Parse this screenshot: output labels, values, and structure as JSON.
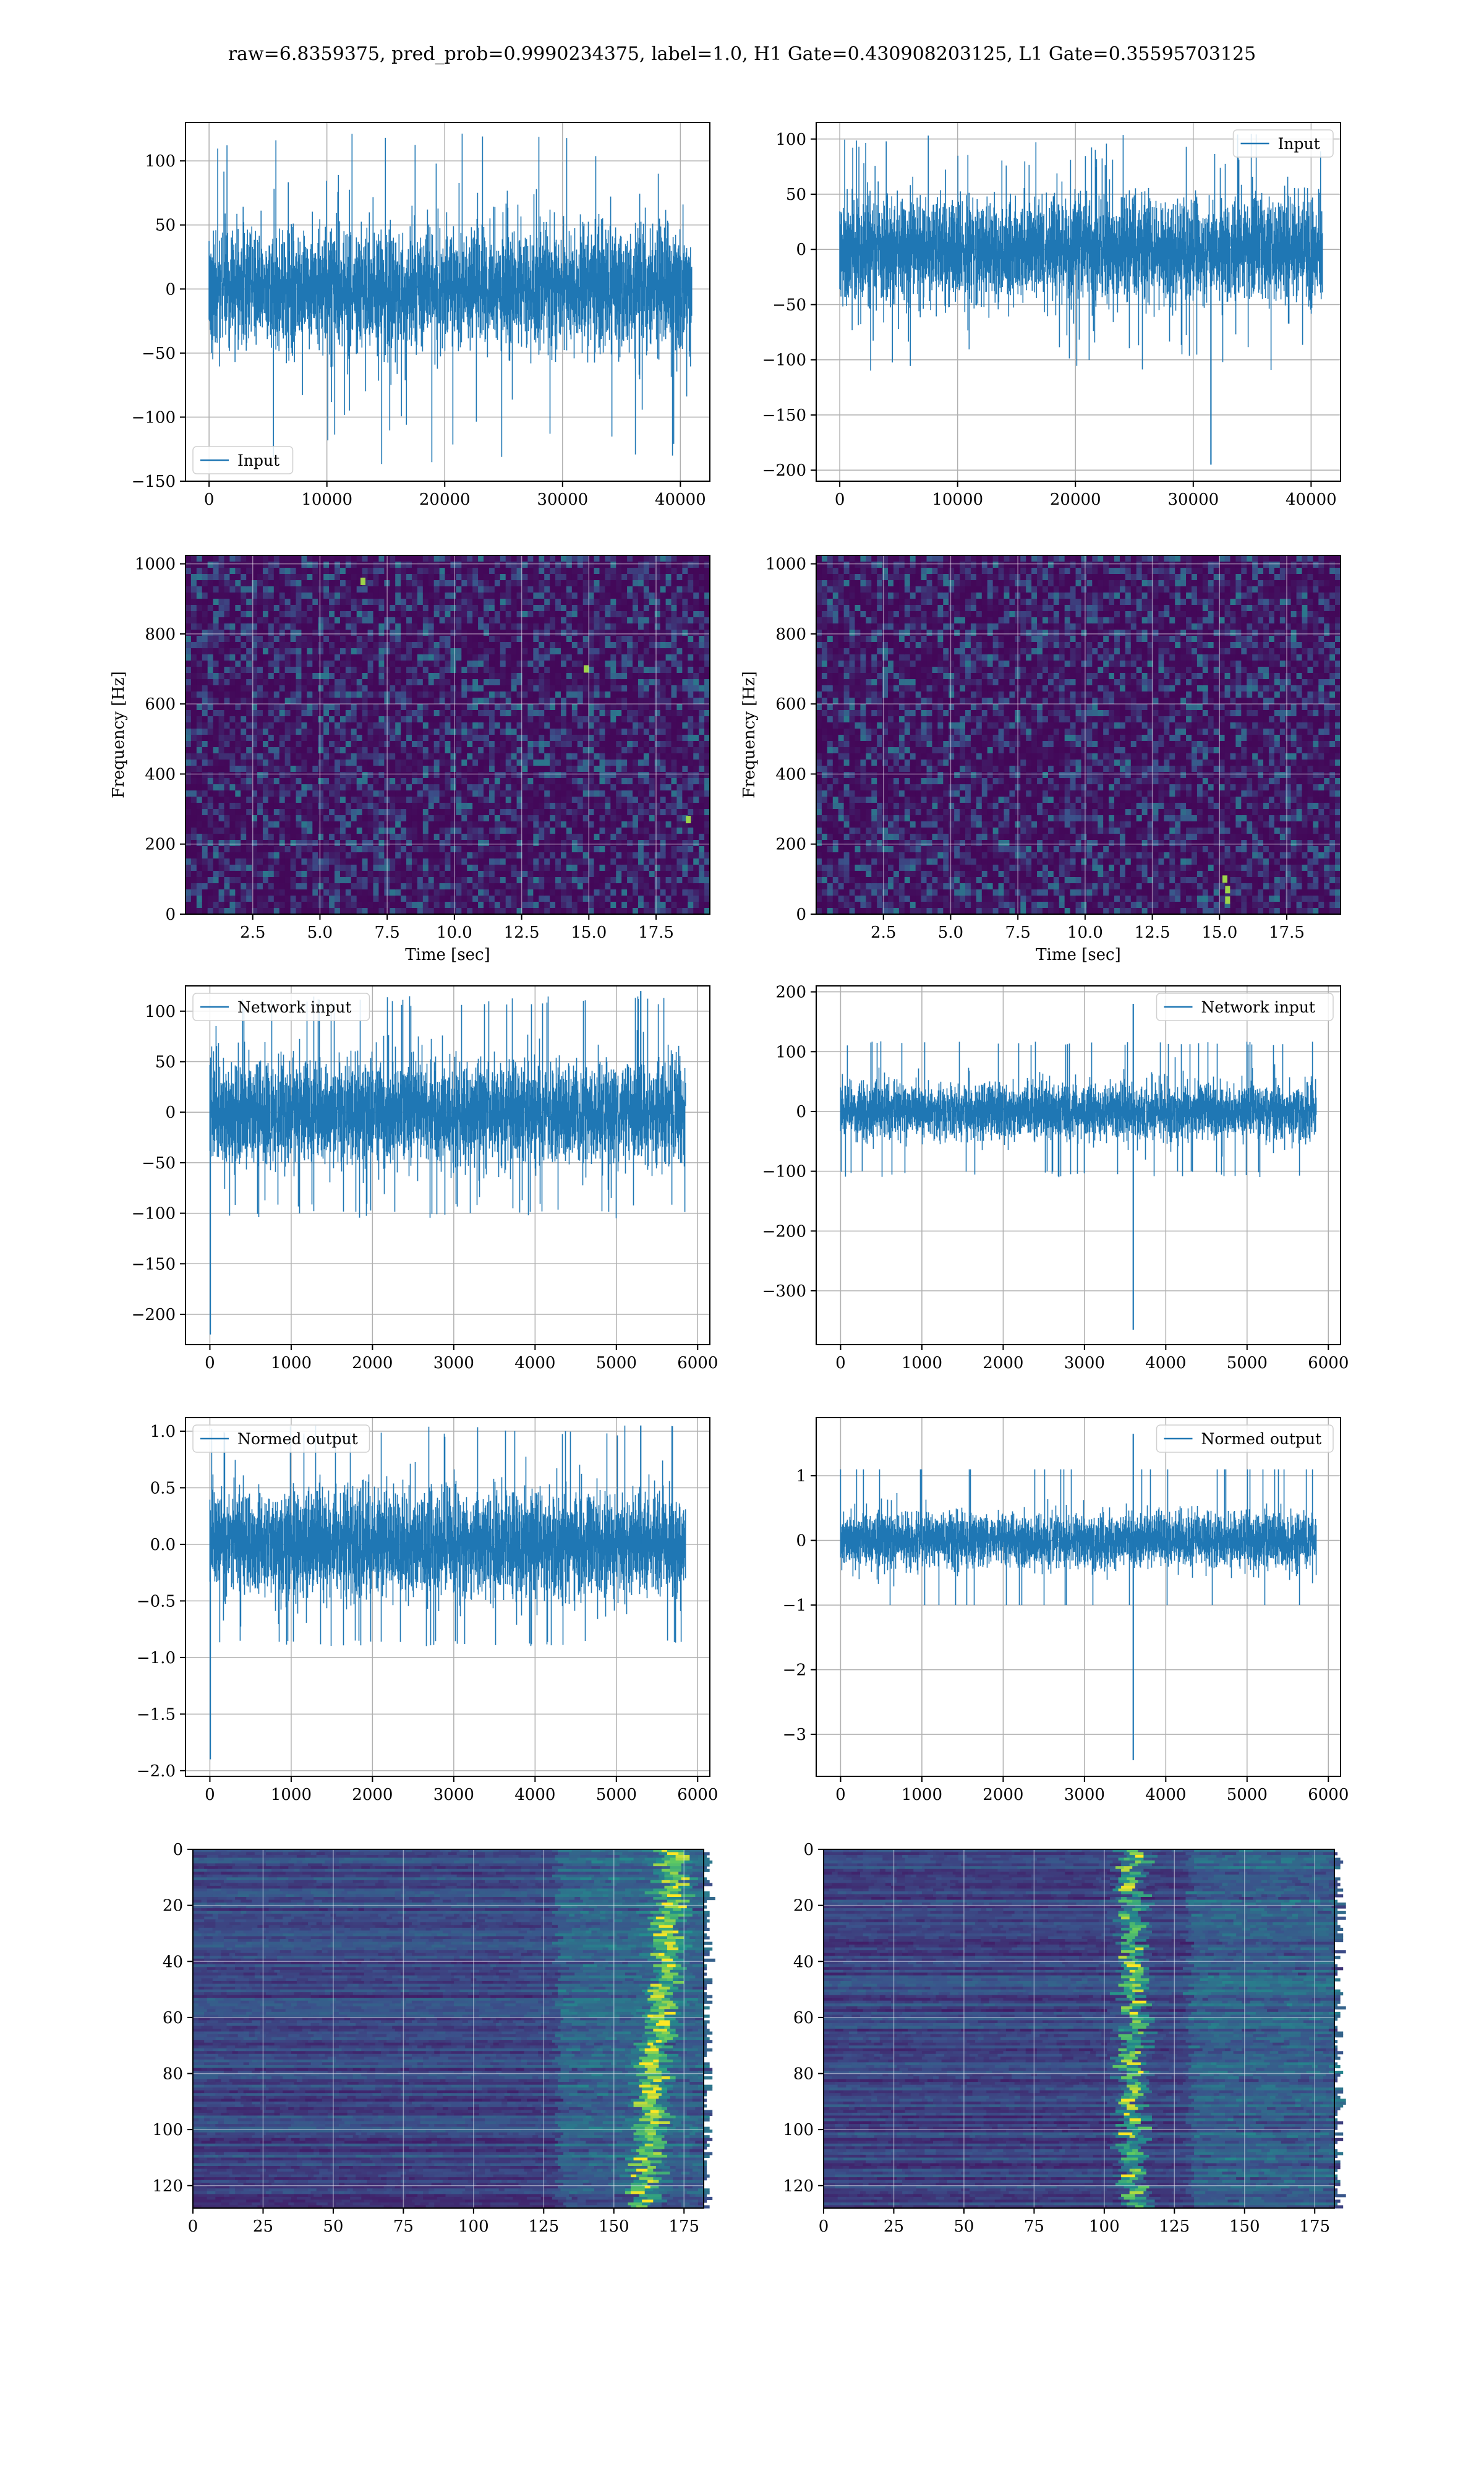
{
  "figure": {
    "suptitle": "raw=6.8359375, pred_prob=0.9990234375, label=1.0, H1 Gate=0.430908203125, L1 Gate=0.35595703125"
  },
  "colors": {
    "line": "#1f77b4",
    "grid": "#b0b0b0",
    "heat_low": "#440154",
    "heat_mid": "#21918c",
    "heat_high": "#fde725"
  },
  "chart_data": [
    {
      "id": "h1-input",
      "type": "line",
      "legend": [
        "Input"
      ],
      "legend_loc": "lower left",
      "xlim": [
        -2000,
        42500
      ],
      "ylim": [
        -150,
        130
      ],
      "xticks": [
        0,
        10000,
        20000,
        30000,
        40000
      ],
      "yticks": [
        -150,
        -100,
        -50,
        0,
        50,
        100
      ],
      "signal": {
        "n": 40960,
        "amp": 22,
        "band": [
          -65,
          70
        ],
        "min": -138,
        "max": 122,
        "spikes": []
      },
      "grid": true
    },
    {
      "id": "l1-input",
      "type": "line",
      "legend": [
        "Input"
      ],
      "legend_loc": "upper right",
      "xlim": [
        -2000,
        42500
      ],
      "ylim": [
        -210,
        115
      ],
      "xticks": [
        0,
        10000,
        20000,
        30000,
        40000
      ],
      "yticks": [
        -200,
        -150,
        -100,
        -50,
        0,
        50,
        100
      ],
      "signal": {
        "n": 40960,
        "amp": 22,
        "band": [
          -65,
          75
        ],
        "min": -110,
        "max": 108,
        "spikes": [
          {
            "x": 31500,
            "y": -195
          }
        ]
      },
      "grid": true
    },
    {
      "id": "h1-spectrogram",
      "type": "heatmap",
      "xlim": [
        0,
        19.5
      ],
      "ylim": [
        0,
        1024
      ],
      "xticks": [
        2.5,
        5.0,
        7.5,
        10.0,
        12.5,
        15.0,
        17.5
      ],
      "yticks": [
        0,
        200,
        400,
        600,
        800,
        1000
      ],
      "xlabel": "Time [sec]",
      "ylabel": "Frequency [Hz]",
      "hot_spots": [
        {
          "x": 18.7,
          "y": 270
        },
        {
          "x": 14.9,
          "y": 700
        },
        {
          "x": 6.6,
          "y": 950
        }
      ],
      "grid": true
    },
    {
      "id": "l1-spectrogram",
      "type": "heatmap",
      "xlim": [
        0,
        19.5
      ],
      "ylim": [
        0,
        1024
      ],
      "xticks": [
        2.5,
        5.0,
        7.5,
        10.0,
        12.5,
        15.0,
        17.5
      ],
      "yticks": [
        0,
        200,
        400,
        600,
        800,
        1000
      ],
      "xlabel": "Time [sec]",
      "ylabel": "Frequency [Hz]",
      "hot_spots": [
        {
          "x": 15.3,
          "y": 40
        },
        {
          "x": 15.3,
          "y": 70
        },
        {
          "x": 15.2,
          "y": 100
        }
      ],
      "grid": true
    },
    {
      "id": "h1-network-input",
      "type": "line",
      "legend": [
        "Network input"
      ],
      "legend_loc": "upper left",
      "xlim": [
        -300,
        6150
      ],
      "ylim": [
        -230,
        125
      ],
      "xticks": [
        0,
        1000,
        2000,
        3000,
        4000,
        5000,
        6000
      ],
      "yticks": [
        -200,
        -150,
        -100,
        -50,
        0,
        50,
        100
      ],
      "signal": {
        "n": 5850,
        "amp": 24,
        "band": [
          -90,
          105
        ],
        "min": -105,
        "max": 115,
        "spikes": [
          {
            "x": 5,
            "y": -220
          },
          {
            "x": 5300,
            "y": 120
          }
        ]
      },
      "grid": true
    },
    {
      "id": "l1-network-input",
      "type": "line",
      "legend": [
        "Network input"
      ],
      "legend_loc": "upper right",
      "xlim": [
        -300,
        6150
      ],
      "ylim": [
        -390,
        210
      ],
      "xticks": [
        0,
        1000,
        2000,
        3000,
        4000,
        5000,
        6000
      ],
      "yticks": [
        -300,
        -200,
        -100,
        0,
        100,
        200
      ],
      "signal": {
        "n": 5850,
        "amp": 22,
        "band": [
          -100,
          110
        ],
        "min": -110,
        "max": 118,
        "spikes": [
          {
            "x": 3600,
            "y": -365
          },
          {
            "x": 3600,
            "y": 180
          }
        ]
      },
      "grid": true
    },
    {
      "id": "h1-normed-output",
      "type": "line",
      "legend": [
        "Normed output"
      ],
      "legend_loc": "upper left",
      "xlim": [
        -300,
        6150
      ],
      "ylim": [
        -2.05,
        1.12
      ],
      "xticks": [
        0,
        1000,
        2000,
        3000,
        4000,
        5000,
        6000
      ],
      "yticks": [
        -2.0,
        -1.5,
        -1.0,
        -0.5,
        0.0,
        0.5,
        1.0
      ],
      "signal": {
        "n": 5850,
        "amp": 0.22,
        "band": [
          -0.85,
          0.95
        ],
        "min": -0.9,
        "max": 1.05,
        "spikes": [
          {
            "x": 5,
            "y": -1.9
          },
          {
            "x": 5300,
            "y": 1.05
          }
        ]
      },
      "grid": true
    },
    {
      "id": "l1-normed-output",
      "type": "line",
      "legend": [
        "Normed output"
      ],
      "legend_loc": "upper right",
      "xlim": [
        -300,
        6150
      ],
      "ylim": [
        -3.65,
        1.9
      ],
      "xticks": [
        0,
        1000,
        2000,
        3000,
        4000,
        5000,
        6000
      ],
      "yticks": [
        -3,
        -2,
        -1,
        0,
        1
      ],
      "signal": {
        "n": 5850,
        "amp": 0.2,
        "band": [
          -1.0,
          1.1
        ],
        "min": -1.0,
        "max": 1.1,
        "spikes": [
          {
            "x": 3600,
            "y": -3.4
          },
          {
            "x": 3600,
            "y": 1.65
          }
        ]
      },
      "grid": true
    },
    {
      "id": "h1-feature-map",
      "type": "heatmap",
      "xlim": [
        0,
        182
      ],
      "ylim": [
        128,
        0
      ],
      "xticks": [
        0,
        25,
        50,
        75,
        100,
        125,
        150,
        175
      ],
      "yticks": [
        0,
        20,
        40,
        60,
        80,
        100,
        120
      ],
      "activation_band": {
        "center_start": 172,
        "center_end": 160,
        "width": 6
      },
      "grid": true
    },
    {
      "id": "l1-feature-map",
      "type": "heatmap",
      "xlim": [
        0,
        182
      ],
      "ylim": [
        128,
        0
      ],
      "xticks": [
        0,
        25,
        50,
        75,
        100,
        125,
        150,
        175
      ],
      "yticks": [
        0,
        20,
        40,
        60,
        80,
        100,
        120
      ],
      "activation_band": {
        "center_start": 110,
        "center_end": 110,
        "width": 5
      },
      "grid": true
    }
  ]
}
